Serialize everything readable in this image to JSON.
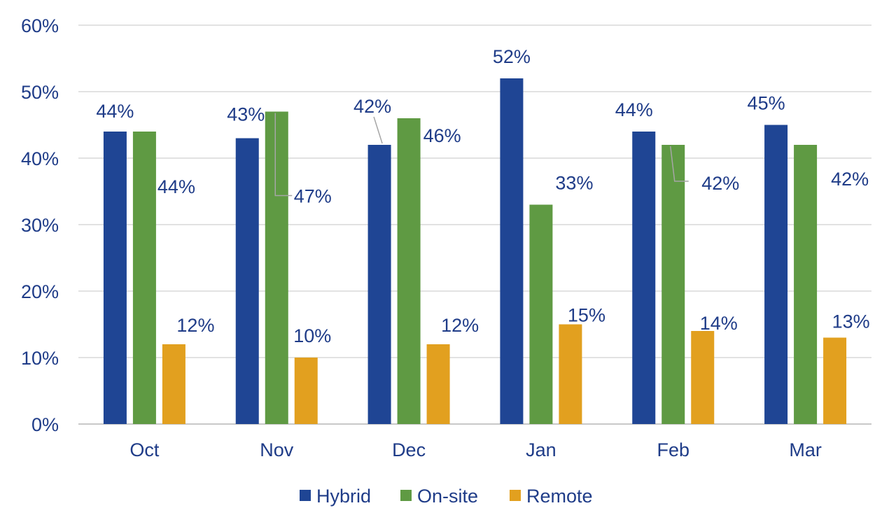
{
  "chart_data": {
    "type": "bar",
    "title": "",
    "xlabel": "",
    "ylabel": "",
    "categories": [
      "Oct",
      "Nov",
      "Dec",
      "Jan",
      "Feb",
      "Mar"
    ],
    "series": [
      {
        "name": "Hybrid",
        "color": "#1f4594",
        "values": [
          44,
          43,
          42,
          52,
          44,
          45
        ],
        "labels": [
          "44%",
          "43%",
          "42%",
          "52%",
          "44%",
          "45%"
        ]
      },
      {
        "name": "On-site",
        "color": "#5f9a43",
        "values": [
          44,
          47,
          46,
          33,
          42,
          42
        ],
        "labels": [
          "44%",
          "47%",
          "46%",
          "33%",
          "42%",
          "42%"
        ]
      },
      {
        "name": "Remote",
        "color": "#e2a01f",
        "values": [
          12,
          10,
          12,
          15,
          14,
          13
        ],
        "labels": [
          "12%",
          "10%",
          "12%",
          "15%",
          "14%",
          "13%"
        ]
      }
    ],
    "ylim": [
      0,
      60
    ],
    "yticks": [
      0,
      10,
      20,
      30,
      40,
      50,
      60
    ],
    "ytick_labels": [
      "0%",
      "10%",
      "20%",
      "30%",
      "40%",
      "50%",
      "60%"
    ],
    "grid": true,
    "legend_position": "bottom",
    "text_color": "#1f3c88"
  }
}
